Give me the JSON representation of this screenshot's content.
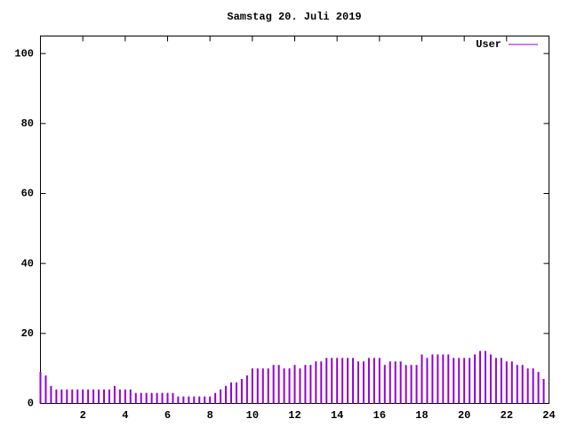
{
  "chart_data": {
    "type": "impulse",
    "title": "Samstag 20. Juli 2019",
    "x": [
      0,
      0.25,
      0.5,
      0.75,
      1,
      1.25,
      1.5,
      1.75,
      2,
      2.25,
      2.5,
      2.75,
      3,
      3.25,
      3.5,
      3.75,
      4,
      4.25,
      4.5,
      4.75,
      5,
      5.25,
      5.5,
      5.75,
      6,
      6.25,
      6.5,
      6.75,
      7,
      7.25,
      7.5,
      7.75,
      8,
      8.25,
      8.5,
      8.75,
      9,
      9.25,
      9.5,
      9.75,
      10,
      10.25,
      10.5,
      10.75,
      11,
      11.25,
      11.5,
      11.75,
      12,
      12.25,
      12.5,
      12.75,
      13,
      13.25,
      13.5,
      13.75,
      14,
      14.25,
      14.5,
      14.75,
      15,
      15.25,
      15.5,
      15.75,
      16,
      16.25,
      16.5,
      16.75,
      17,
      17.25,
      17.5,
      17.75,
      18,
      18.25,
      18.5,
      18.75,
      19,
      19.25,
      19.5,
      19.75,
      20,
      20.25,
      20.5,
      20.75,
      21,
      21.25,
      21.5,
      21.75,
      22,
      22.25,
      22.5,
      22.75,
      23,
      23.25,
      23.5,
      23.75
    ],
    "series": [
      {
        "name": "User",
        "color": "#9400d3",
        "values": [
          9,
          8,
          5,
          4,
          4,
          4,
          4,
          4,
          4,
          4,
          4,
          4,
          4,
          4,
          5,
          4,
          4,
          4,
          3,
          3,
          3,
          3,
          3,
          3,
          3,
          3,
          2,
          2,
          2,
          2,
          2,
          2,
          2,
          3,
          4,
          5,
          6,
          6,
          7,
          8,
          10,
          10,
          10,
          10,
          11,
          11,
          10,
          10,
          11,
          10,
          11,
          11,
          12,
          12,
          13,
          13,
          13,
          13,
          13,
          13,
          12,
          12,
          13,
          13,
          13,
          11,
          12,
          12,
          12,
          11,
          11,
          11,
          14,
          13,
          14,
          14,
          14,
          14,
          13,
          13,
          13,
          13,
          14,
          15,
          15,
          14,
          13,
          13,
          12,
          12,
          11,
          11,
          10,
          10,
          9,
          7
        ]
      }
    ],
    "xlim": [
      0,
      24
    ],
    "xticks": [
      2,
      4,
      6,
      8,
      10,
      12,
      14,
      16,
      18,
      20,
      22,
      24
    ],
    "ylim": [
      0,
      105
    ],
    "yticks": [
      0,
      20,
      40,
      60,
      80,
      100
    ],
    "legend": "top-right"
  }
}
